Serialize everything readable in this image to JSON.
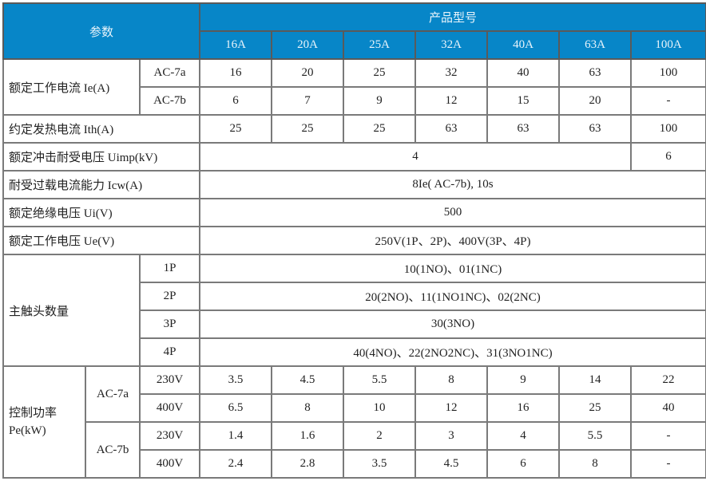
{
  "header": {
    "param_label": "参数",
    "product_label": "产品型号",
    "models": [
      "16A",
      "20A",
      "25A",
      "32A",
      "40A",
      "63A",
      "100A"
    ]
  },
  "rows": {
    "ie": {
      "label": "额定工作电流 Ie(A)",
      "ac7a": {
        "label": "AC-7a",
        "values": [
          "16",
          "20",
          "25",
          "32",
          "40",
          "63",
          "100"
        ]
      },
      "ac7b": {
        "label": "AC-7b",
        "values": [
          "6",
          "7",
          "9",
          "12",
          "15",
          "20",
          "-"
        ]
      }
    },
    "ith": {
      "label": "约定发热电流 Ith(A)",
      "values": [
        "25",
        "25",
        "25",
        "63",
        "63",
        "63",
        "100"
      ]
    },
    "uimp": {
      "label": "额定冲击耐受电压 Uimp(kV)",
      "value_main": "4",
      "value_100a": "6"
    },
    "icw": {
      "label": "耐受过载电流能力 Icw(A)",
      "value": "8Ie( AC-7b), 10s"
    },
    "ui": {
      "label": "额定绝缘电压 Ui(V)",
      "value": "500"
    },
    "ue": {
      "label": "额定工作电压 Ue(V)",
      "value": "250V(1P、2P)、400V(3P、4P)"
    },
    "contacts": {
      "label": "主触头数量",
      "items": [
        {
          "pole": "1P",
          "value": "10(1NO)、01(1NC)"
        },
        {
          "pole": "2P",
          "value": "20(2NO)、11(1NO1NC)、02(2NC)"
        },
        {
          "pole": "3P",
          "value": "30(3NO)"
        },
        {
          "pole": "4P",
          "value": "40(4NO)、22(2NO2NC)、31(3NO1NC)"
        }
      ]
    },
    "pe": {
      "label_line1": "控制功率",
      "label_line2": "Pe(kW)",
      "ac7a": {
        "label": "AC-7a",
        "v230": {
          "label": "230V",
          "values": [
            "3.5",
            "4.5",
            "5.5",
            "8",
            "9",
            "14",
            "22"
          ]
        },
        "v400": {
          "label": "400V",
          "values": [
            "6.5",
            "8",
            "10",
            "12",
            "16",
            "25",
            "40"
          ]
        }
      },
      "ac7b": {
        "label": "AC-7b",
        "v230": {
          "label": "230V",
          "values": [
            "1.4",
            "1.6",
            "2",
            "3",
            "4",
            "5.5",
            "-"
          ]
        },
        "v400": {
          "label": "400V",
          "values": [
            "2.4",
            "2.8",
            "3.5",
            "4.5",
            "6",
            "8",
            "-"
          ]
        }
      }
    }
  }
}
